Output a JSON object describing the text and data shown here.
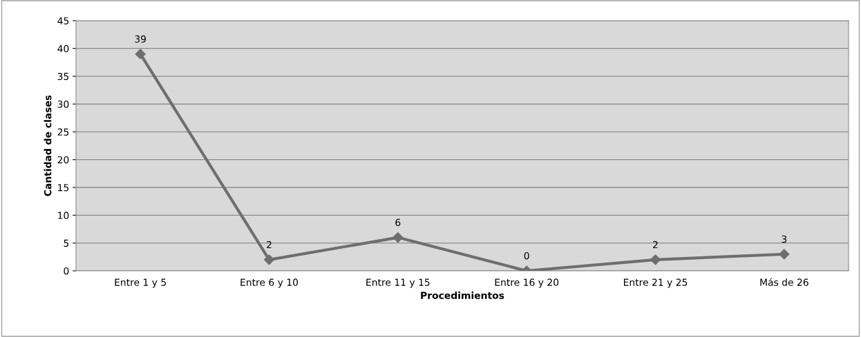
{
  "chart_data": {
    "type": "line",
    "xlabel": "Procedimientos",
    "ylabel": "Cantidad de clases",
    "categories": [
      "Entre 1 y 5",
      "Entre 6 y 10",
      "Entre 11 y 15",
      "Entre 16 y 20",
      "Entre 21 y 25",
      "Más de 26"
    ],
    "series": [
      {
        "color": "#6e6e6e",
        "values": [
          39,
          2,
          6,
          0,
          2,
          3
        ]
      }
    ],
    "ylim": [
      0,
      45
    ],
    "yticks": [
      0,
      5,
      10,
      15,
      20,
      25,
      30,
      35,
      40,
      45
    ],
    "grid": "y",
    "marker": "diamond",
    "line_style": "solid",
    "data_labels": true
  }
}
